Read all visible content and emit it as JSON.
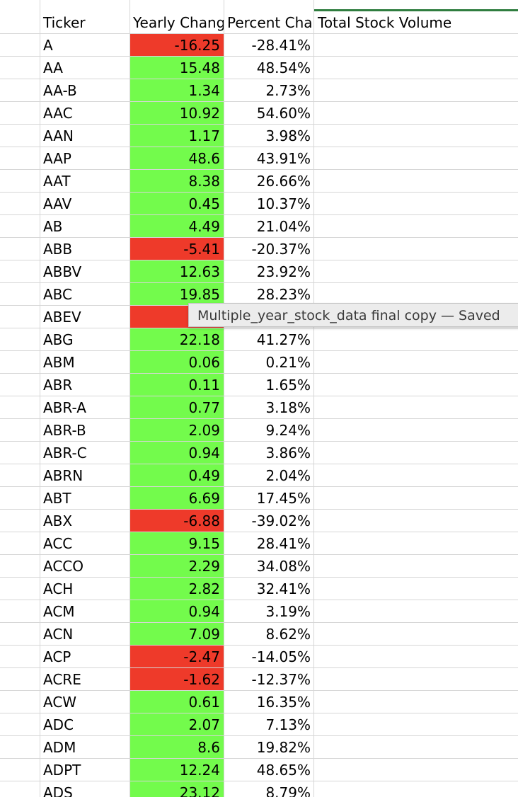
{
  "table": {
    "headers": {
      "ticker": "Ticker",
      "yearly_change": "Yearly Change",
      "percent_change": "Percent Change",
      "total_volume": "Total Stock Volume"
    },
    "rows": [
      {
        "ticker": "A",
        "yearly_change": "-16.25",
        "percent_change": "-28.41%",
        "sign": "neg"
      },
      {
        "ticker": "AA",
        "yearly_change": "15.48",
        "percent_change": "48.54%",
        "sign": "pos"
      },
      {
        "ticker": "AA-B",
        "yearly_change": "1.34",
        "percent_change": "2.73%",
        "sign": "pos"
      },
      {
        "ticker": "AAC",
        "yearly_change": "10.92",
        "percent_change": "54.60%",
        "sign": "pos"
      },
      {
        "ticker": "AAN",
        "yearly_change": "1.17",
        "percent_change": "3.98%",
        "sign": "pos"
      },
      {
        "ticker": "AAP",
        "yearly_change": "48.6",
        "percent_change": "43.91%",
        "sign": "pos"
      },
      {
        "ticker": "AAT",
        "yearly_change": "8.38",
        "percent_change": "26.66%",
        "sign": "pos"
      },
      {
        "ticker": "AAV",
        "yearly_change": "0.45",
        "percent_change": "10.37%",
        "sign": "pos"
      },
      {
        "ticker": "AB",
        "yearly_change": "4.49",
        "percent_change": "21.04%",
        "sign": "pos"
      },
      {
        "ticker": "ABB",
        "yearly_change": "-5.41",
        "percent_change": "-20.37%",
        "sign": "neg"
      },
      {
        "ticker": "ABBV",
        "yearly_change": "12.63",
        "percent_change": "23.92%",
        "sign": "pos"
      },
      {
        "ticker": "ABC",
        "yearly_change": "19.85",
        "percent_change": "28.23%",
        "sign": "pos"
      },
      {
        "ticker": "ABEV",
        "yearly_change": "",
        "percent_change": "",
        "sign": "neg"
      },
      {
        "ticker": "ABG",
        "yearly_change": "22.18",
        "percent_change": "41.27%",
        "sign": "pos"
      },
      {
        "ticker": "ABM",
        "yearly_change": "0.06",
        "percent_change": "0.21%",
        "sign": "pos"
      },
      {
        "ticker": "ABR",
        "yearly_change": "0.11",
        "percent_change": "1.65%",
        "sign": "pos"
      },
      {
        "ticker": "ABR-A",
        "yearly_change": "0.77",
        "percent_change": "3.18%",
        "sign": "pos"
      },
      {
        "ticker": "ABR-B",
        "yearly_change": "2.09",
        "percent_change": "9.24%",
        "sign": "pos"
      },
      {
        "ticker": "ABR-C",
        "yearly_change": "0.94",
        "percent_change": "3.86%",
        "sign": "pos"
      },
      {
        "ticker": "ABRN",
        "yearly_change": "0.49",
        "percent_change": "2.04%",
        "sign": "pos"
      },
      {
        "ticker": "ABT",
        "yearly_change": "6.69",
        "percent_change": "17.45%",
        "sign": "pos"
      },
      {
        "ticker": "ABX",
        "yearly_change": "-6.88",
        "percent_change": "-39.02%",
        "sign": "neg"
      },
      {
        "ticker": "ACC",
        "yearly_change": "9.15",
        "percent_change": "28.41%",
        "sign": "pos"
      },
      {
        "ticker": "ACCO",
        "yearly_change": "2.29",
        "percent_change": "34.08%",
        "sign": "pos"
      },
      {
        "ticker": "ACH",
        "yearly_change": "2.82",
        "percent_change": "32.41%",
        "sign": "pos"
      },
      {
        "ticker": "ACM",
        "yearly_change": "0.94",
        "percent_change": "3.19%",
        "sign": "pos"
      },
      {
        "ticker": "ACN",
        "yearly_change": "7.09",
        "percent_change": "8.62%",
        "sign": "pos"
      },
      {
        "ticker": "ACP",
        "yearly_change": "-2.47",
        "percent_change": "-14.05%",
        "sign": "neg"
      },
      {
        "ticker": "ACRE",
        "yearly_change": "-1.62",
        "percent_change": "-12.37%",
        "sign": "neg"
      },
      {
        "ticker": "ACW",
        "yearly_change": "0.61",
        "percent_change": "16.35%",
        "sign": "pos"
      },
      {
        "ticker": "ADC",
        "yearly_change": "2.07",
        "percent_change": "7.13%",
        "sign": "pos"
      },
      {
        "ticker": "ADM",
        "yearly_change": "8.6",
        "percent_change": "19.82%",
        "sign": "pos"
      },
      {
        "ticker": "ADPT",
        "yearly_change": "12.24",
        "percent_change": "48.65%",
        "sign": "pos"
      },
      {
        "ticker": "ADS",
        "yearly_change": "23.12",
        "percent_change": "8.79%",
        "sign": "pos"
      }
    ]
  },
  "tooltip": {
    "text": "Multiple_year_stock_data final copy — Saved"
  },
  "colors": {
    "positive_fill": "#73fb4c",
    "negative_fill": "#ee3a2a",
    "gridline": "#d6d6d6",
    "selection_accent": "#2f7d3f"
  }
}
